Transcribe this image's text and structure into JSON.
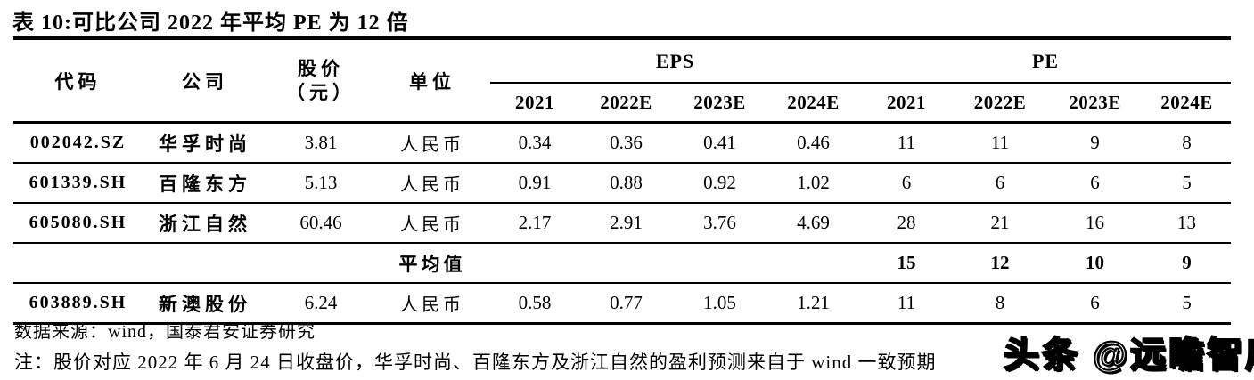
{
  "title": "表 10:可比公司 2022 年平均 PE 为 12 倍",
  "table": {
    "headers": {
      "code": "代码",
      "company": "公司",
      "price_line1": "股价",
      "price_line2": "（元）",
      "unit": "单位",
      "eps_group": "EPS",
      "pe_group": "PE",
      "eps_years": [
        "2021",
        "2022E",
        "2023E",
        "2024E"
      ],
      "pe_years": [
        "2021",
        "2022E",
        "2023E",
        "2024E"
      ]
    },
    "rows": [
      {
        "code": "002042.SZ",
        "company": "华孚时尚",
        "price": "3.81",
        "unit": "人民币",
        "eps": [
          "0.34",
          "0.36",
          "0.41",
          "0.46"
        ],
        "pe": [
          "11",
          "11",
          "9",
          "8"
        ]
      },
      {
        "code": "601339.SH",
        "company": "百隆东方",
        "price": "5.13",
        "unit": "人民币",
        "eps": [
          "0.91",
          "0.88",
          "0.92",
          "1.02"
        ],
        "pe": [
          "6",
          "6",
          "6",
          "5"
        ]
      },
      {
        "code": "605080.SH",
        "company": "浙江自然",
        "price": "60.46",
        "unit": "人民币",
        "eps": [
          "2.17",
          "2.91",
          "3.76",
          "4.69"
        ],
        "pe": [
          "28",
          "21",
          "16",
          "13"
        ]
      },
      {
        "label": "平均值",
        "pe": [
          "15",
          "12",
          "10",
          "9"
        ]
      },
      {
        "code": "603889.SH",
        "company": "新澳股份",
        "price": "6.24",
        "unit": "人民币",
        "eps": [
          "0.58",
          "0.77",
          "1.05",
          "1.21"
        ],
        "pe": [
          "11",
          "8",
          "6",
          "5"
        ]
      }
    ]
  },
  "footer": {
    "source": "数据来源：wind，国泰君安证券研究",
    "note": "注：股价对应 2022 年 6 月 24 日收盘价，华孚时尚、百隆东方及浙江自然的盈利预测来自于 wind 一致预期"
  },
  "watermark": "头条 @远瞻智库"
}
